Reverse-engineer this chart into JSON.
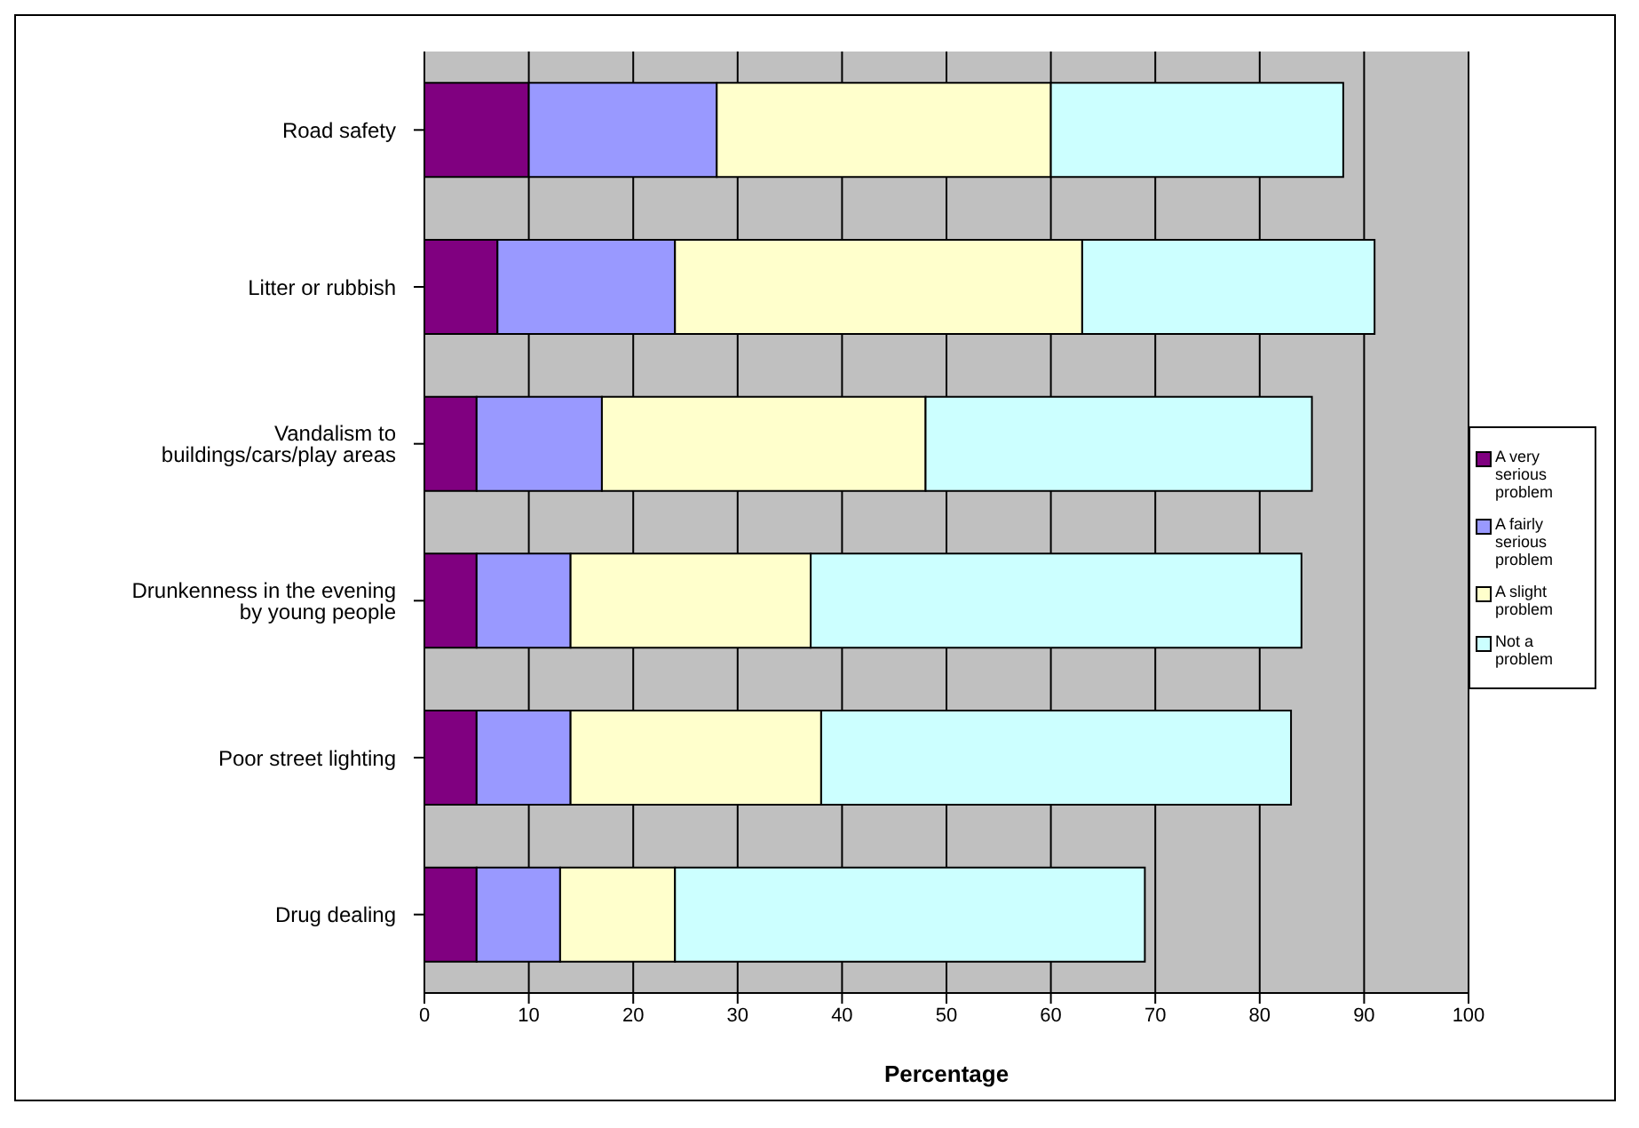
{
  "chart_data": {
    "type": "bar",
    "orientation": "horizontal",
    "stacked": true,
    "xlabel": "Percentage",
    "categories": [
      "Road safety",
      "Litter or rubbish",
      "Vandalism to buildings/cars/play areas",
      "Drunkenness in the evening by young people",
      "Poor street lighting",
      "Drug dealing"
    ],
    "series": [
      {
        "name": "A very serious problem",
        "color": "#800080",
        "values": [
          10,
          7,
          5,
          5,
          5,
          5
        ]
      },
      {
        "name": "A fairly serious problem",
        "color": "#9999ff",
        "values": [
          18,
          17,
          12,
          9,
          9,
          8
        ]
      },
      {
        "name": "A slight problem",
        "color": "#ffffcc",
        "values": [
          32,
          39,
          31,
          23,
          24,
          11
        ]
      },
      {
        "name": "Not a problem",
        "color": "#ccffff",
        "values": [
          28,
          28,
          37,
          47,
          45,
          45
        ]
      }
    ],
    "xlim": [
      0,
      100
    ],
    "xticks": [
      0,
      10,
      20,
      30,
      40,
      50,
      60,
      70,
      80,
      90,
      100
    ],
    "grid": "x",
    "legend": "right"
  }
}
